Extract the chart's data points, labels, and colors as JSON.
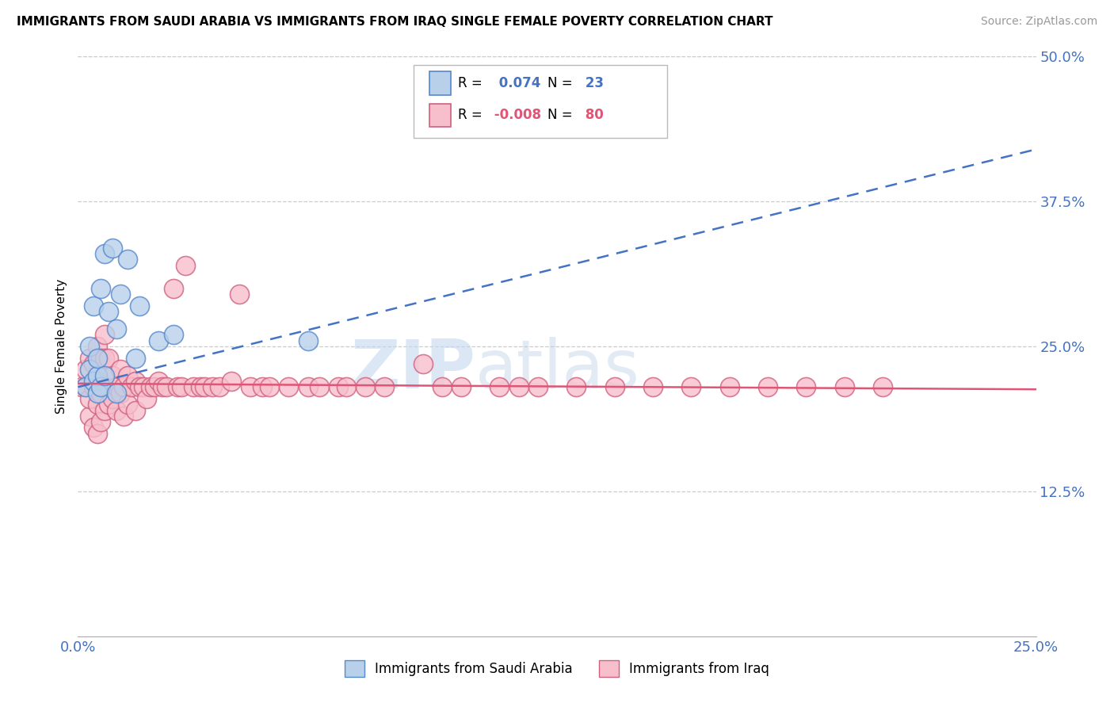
{
  "title": "IMMIGRANTS FROM SAUDI ARABIA VS IMMIGRANTS FROM IRAQ SINGLE FEMALE POVERTY CORRELATION CHART",
  "source": "Source: ZipAtlas.com",
  "ylabel": "Single Female Poverty",
  "xlim": [
    0.0,
    0.25
  ],
  "ylim": [
    0.0,
    0.5
  ],
  "ytick_values": [
    0.125,
    0.25,
    0.375,
    0.5
  ],
  "xtick_values": [
    0.0,
    0.25
  ],
  "r_saudi": 0.074,
  "n_saudi": 23,
  "r_iraq": -0.008,
  "n_iraq": 80,
  "saudi_fill": "#b8d0ea",
  "iraq_fill": "#f7bfcc",
  "saudi_edge": "#5588cc",
  "iraq_edge": "#d06080",
  "saudi_line_color": "#4472c4",
  "iraq_line_color": "#e05575",
  "grid_color": "#cccccc",
  "saudi_x": [
    0.002,
    0.003,
    0.003,
    0.004,
    0.004,
    0.005,
    0.005,
    0.005,
    0.006,
    0.006,
    0.007,
    0.007,
    0.008,
    0.009,
    0.01,
    0.01,
    0.011,
    0.013,
    0.015,
    0.016,
    0.021,
    0.025,
    0.06
  ],
  "saudi_y": [
    0.215,
    0.23,
    0.25,
    0.22,
    0.285,
    0.21,
    0.225,
    0.24,
    0.215,
    0.3,
    0.225,
    0.33,
    0.28,
    0.335,
    0.21,
    0.265,
    0.295,
    0.325,
    0.24,
    0.285,
    0.255,
    0.26,
    0.255
  ],
  "iraq_x": [
    0.001,
    0.002,
    0.002,
    0.003,
    0.003,
    0.003,
    0.004,
    0.004,
    0.004,
    0.005,
    0.005,
    0.005,
    0.005,
    0.006,
    0.006,
    0.006,
    0.007,
    0.007,
    0.007,
    0.007,
    0.008,
    0.008,
    0.008,
    0.009,
    0.009,
    0.01,
    0.01,
    0.011,
    0.011,
    0.012,
    0.012,
    0.013,
    0.013,
    0.014,
    0.015,
    0.015,
    0.016,
    0.017,
    0.018,
    0.019,
    0.02,
    0.021,
    0.022,
    0.023,
    0.025,
    0.026,
    0.027,
    0.028,
    0.03,
    0.032,
    0.033,
    0.035,
    0.037,
    0.04,
    0.042,
    0.045,
    0.048,
    0.05,
    0.055,
    0.06,
    0.063,
    0.068,
    0.07,
    0.075,
    0.08,
    0.09,
    0.095,
    0.1,
    0.11,
    0.115,
    0.12,
    0.13,
    0.14,
    0.15,
    0.16,
    0.17,
    0.18,
    0.19,
    0.2,
    0.21
  ],
  "iraq_y": [
    0.215,
    0.215,
    0.23,
    0.19,
    0.205,
    0.24,
    0.18,
    0.215,
    0.235,
    0.175,
    0.2,
    0.22,
    0.25,
    0.185,
    0.21,
    0.24,
    0.195,
    0.215,
    0.24,
    0.26,
    0.2,
    0.215,
    0.24,
    0.205,
    0.225,
    0.195,
    0.215,
    0.21,
    0.23,
    0.19,
    0.215,
    0.2,
    0.225,
    0.215,
    0.195,
    0.22,
    0.215,
    0.215,
    0.205,
    0.215,
    0.215,
    0.22,
    0.215,
    0.215,
    0.3,
    0.215,
    0.215,
    0.32,
    0.215,
    0.215,
    0.215,
    0.215,
    0.215,
    0.22,
    0.295,
    0.215,
    0.215,
    0.215,
    0.215,
    0.215,
    0.215,
    0.215,
    0.215,
    0.215,
    0.215,
    0.235,
    0.215,
    0.215,
    0.215,
    0.215,
    0.215,
    0.215,
    0.215,
    0.215,
    0.215,
    0.215,
    0.215,
    0.215,
    0.215,
    0.215
  ]
}
